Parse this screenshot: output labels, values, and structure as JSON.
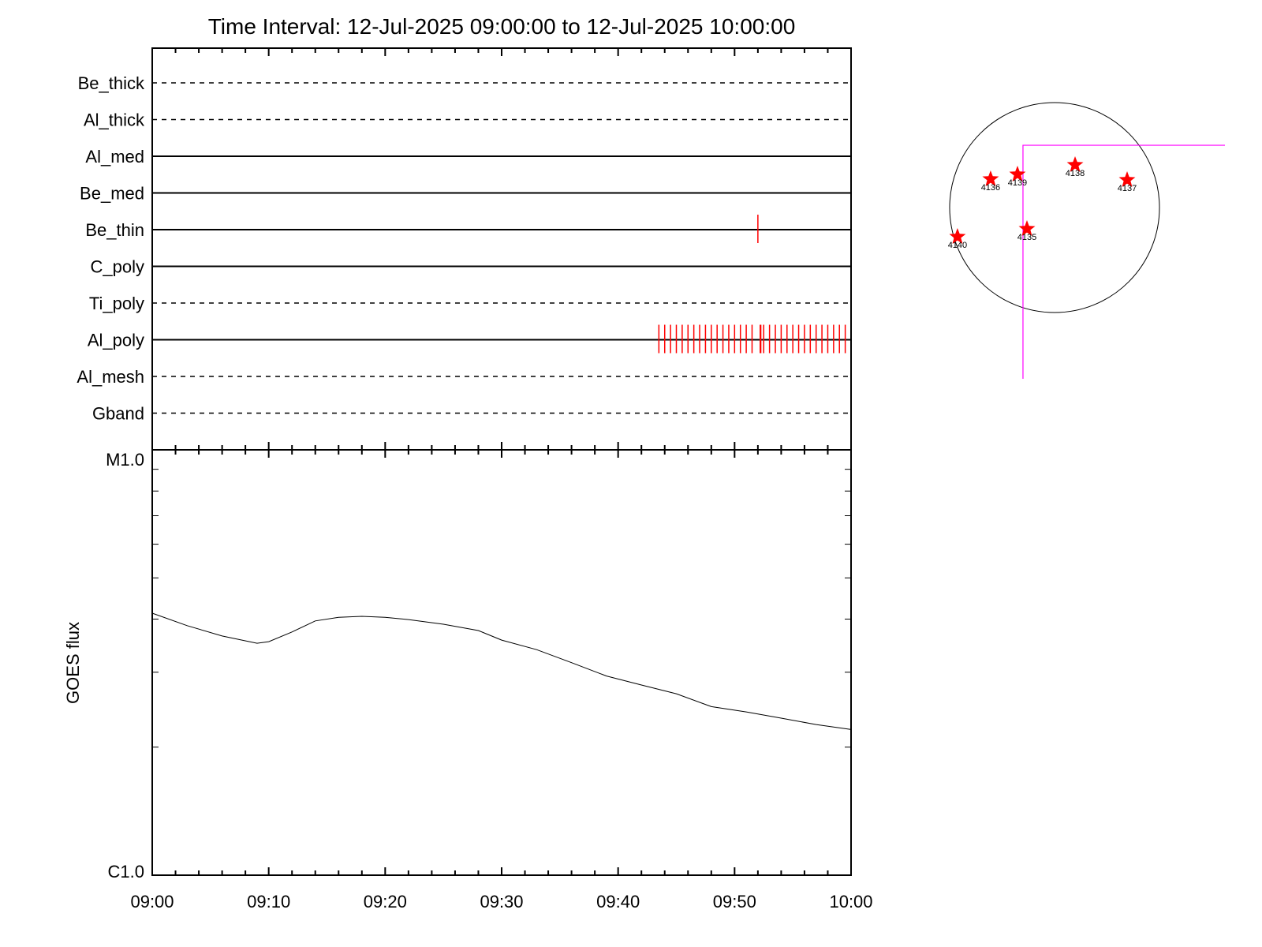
{
  "chart_data": [
    {
      "type": "table",
      "name": "attenuator-filter-timeline",
      "title": "Time Interval: 12-Jul-2025 09:00:00 to 12-Jul-2025 10:00:00",
      "xlim_minutes": [
        0,
        60
      ],
      "x_tick_labels": [
        "09:00",
        "09:10",
        "09:20",
        "09:30",
        "09:40",
        "09:50",
        "10:00"
      ],
      "rows": [
        {
          "label": "Be_thick",
          "style": "dashed",
          "events_min": []
        },
        {
          "label": "Al_thick",
          "style": "dashed",
          "events_min": []
        },
        {
          "label": "Al_med",
          "style": "solid",
          "events_min": []
        },
        {
          "label": "Be_med",
          "style": "solid",
          "events_min": []
        },
        {
          "label": "Be_thin",
          "style": "solid",
          "events_min": [
            52.0
          ]
        },
        {
          "label": "C_poly",
          "style": "solid",
          "events_min": []
        },
        {
          "label": "Ti_poly",
          "style": "dashed",
          "events_min": []
        },
        {
          "label": "Al_poly",
          "style": "solid",
          "events_min": [
            43.5,
            44.0,
            44.5,
            45.0,
            45.5,
            46.0,
            46.5,
            47.0,
            47.5,
            48.0,
            48.5,
            49.0,
            49.5,
            50.0,
            50.5,
            51.0,
            51.5,
            52.2,
            52.25,
            52.5,
            53.0,
            53.5,
            54.0,
            54.5,
            55.0,
            55.5,
            56.0,
            56.5,
            57.0,
            57.5,
            58.0,
            58.5,
            59.0,
            59.5
          ]
        },
        {
          "label": "Al_mesh",
          "style": "dashed",
          "events_min": []
        },
        {
          "label": "Gband",
          "style": "dashed",
          "events_min": []
        }
      ],
      "event_color": "#ff0000"
    },
    {
      "type": "line",
      "name": "goes-flux",
      "ylabel": "GOES flux",
      "yscale": "log",
      "ylim": [
        1e-06,
        1e-05
      ],
      "y_tick_labels": {
        "top": "M1.0",
        "bottom": "C1.0"
      },
      "x_minutes": [
        0,
        3,
        6,
        9,
        10,
        12,
        14,
        16,
        18,
        20,
        22,
        25,
        28,
        30,
        33,
        36,
        39,
        42,
        45,
        48,
        51,
        54,
        57,
        60
      ],
      "y": [
        4.13e-06,
        3.86e-06,
        3.65e-06,
        3.51e-06,
        3.54e-06,
        3.73e-06,
        3.96e-06,
        4.04e-06,
        4.06e-06,
        4.04e-06,
        3.99e-06,
        3.89e-06,
        3.76e-06,
        3.57e-06,
        3.39e-06,
        3.16e-06,
        2.94e-06,
        2.8e-06,
        2.67e-06,
        2.49e-06,
        2.42e-06,
        2.34e-06,
        2.26e-06,
        2.2e-06
      ]
    },
    {
      "type": "scatter",
      "name": "solar-disk-map",
      "units": "arcsec",
      "disk_radius": 950,
      "points": [
        {
          "label": "4136",
          "x": -579,
          "y": 257
        },
        {
          "label": "4139",
          "x": -336,
          "y": 300
        },
        {
          "label": "4138",
          "x": 186,
          "y": 386
        },
        {
          "label": "4137",
          "x": 657,
          "y": 250
        },
        {
          "label": "4140",
          "x": -879,
          "y": -264
        },
        {
          "label": "4135",
          "x": -250,
          "y": -193
        }
      ],
      "fov_corner": {
        "x": -286,
        "y": 564
      },
      "marker_color": "#ff0000",
      "fov_color": "#ff00ff"
    }
  ]
}
